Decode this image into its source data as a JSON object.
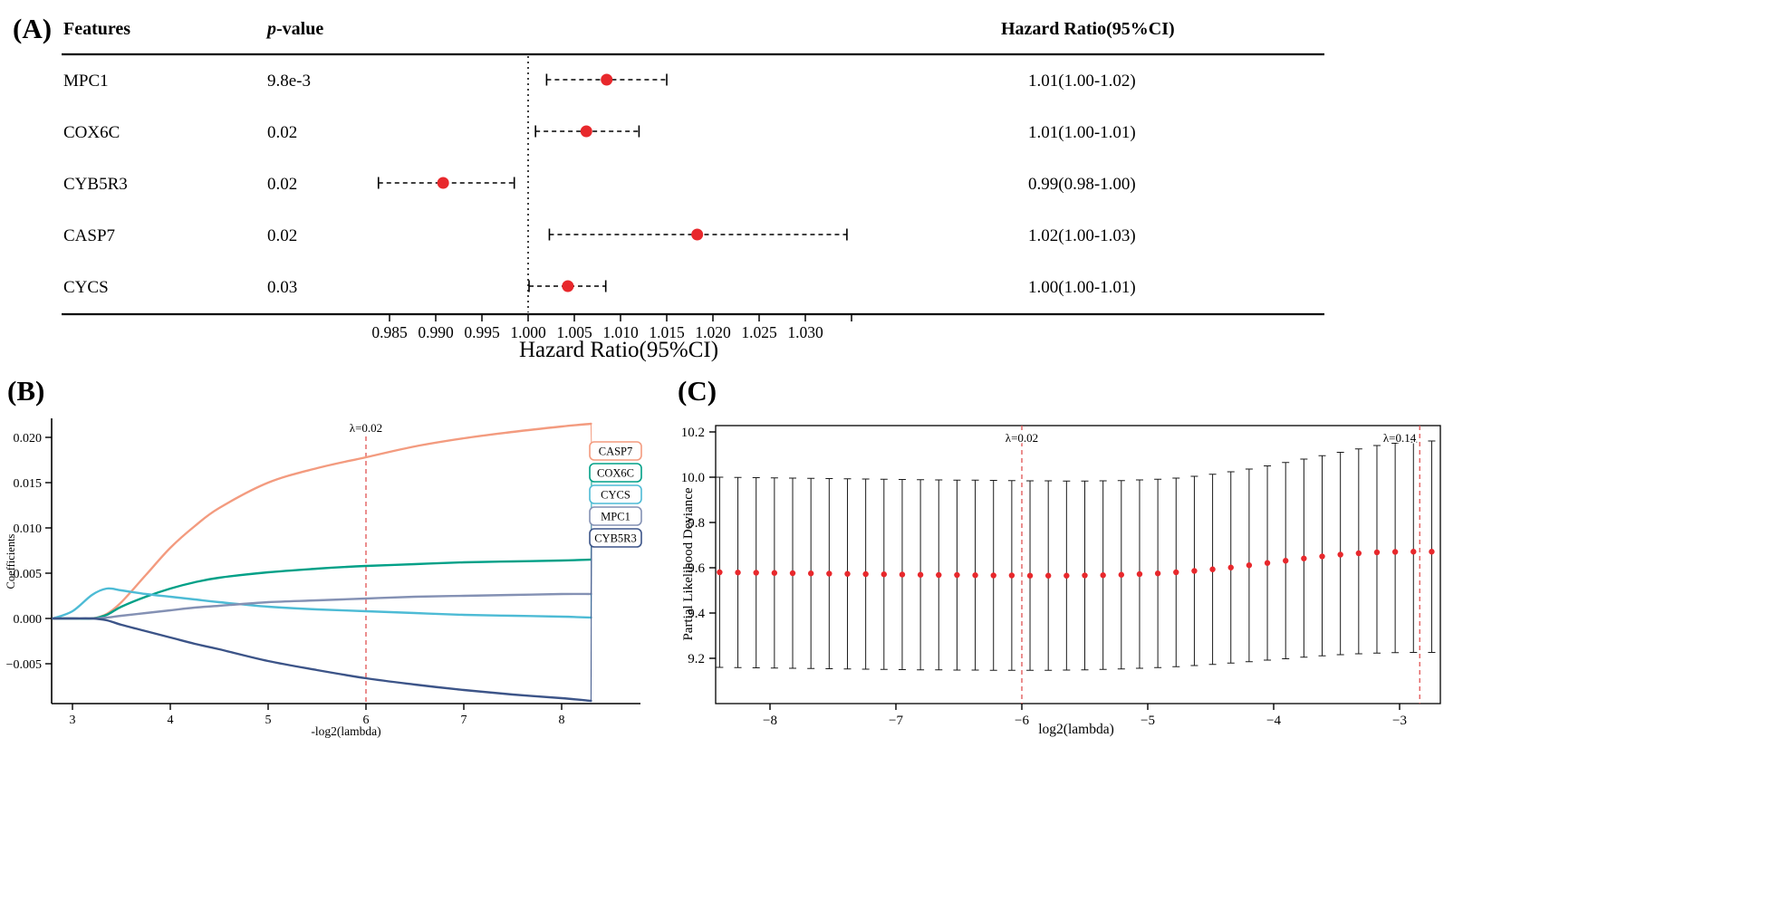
{
  "figure": {
    "panelA_label": "(A)",
    "panelB_label": "(B)",
    "panelC_label": "(C)",
    "background": "#ffffff"
  },
  "chart_data": [
    {
      "type": "scatter",
      "subtype": "forest-plot",
      "panel": "A",
      "columns": {
        "features": "Features",
        "pvalue_prefix": "p",
        "pvalue_suffix": "-value",
        "hazard_ratio": "Hazard Ratio(95%CI)"
      },
      "xlabel": "Hazard Ratio(95%CI)",
      "ref_line": 1.0,
      "xticks": [
        0.985,
        0.99,
        0.995,
        1.0,
        1.005,
        1.01,
        1.015,
        1.02,
        1.025,
        1.03
      ],
      "xticks_unlabeled": [
        1.035
      ],
      "xlim": [
        0.9825,
        1.038
      ],
      "dot_color": "#e8282c",
      "rows": [
        {
          "feature": "MPC1",
          "pvalue": "9.8e-3",
          "hr": 1.0085,
          "ci_low": 1.002,
          "ci_high": 1.015,
          "hr_text": "1.01(1.00-1.02)"
        },
        {
          "feature": "COX6C",
          "pvalue": "0.02",
          "hr": 1.0063,
          "ci_low": 1.0008,
          "ci_high": 1.012,
          "hr_text": "1.01(1.00-1.01)"
        },
        {
          "feature": "CYB5R3",
          "pvalue": "0.02",
          "hr": 0.9908,
          "ci_low": 0.9838,
          "ci_high": 0.9985,
          "hr_text": "0.99(0.98-1.00)"
        },
        {
          "feature": "CASP7",
          "pvalue": "0.02",
          "hr": 1.0183,
          "ci_low": 1.0023,
          "ci_high": 1.0345,
          "hr_text": "1.02(1.00-1.03)"
        },
        {
          "feature": "CYCS",
          "pvalue": "0.03",
          "hr": 1.0043,
          "ci_low": 1.0001,
          "ci_high": 1.0084,
          "hr_text": "1.00(1.00-1.01)"
        }
      ]
    },
    {
      "type": "line",
      "subtype": "lasso-coefficient-paths",
      "panel": "B",
      "xlabel": "-log2(lambda)",
      "ylabel": "Coefficients",
      "xticks": [
        3,
        4,
        5,
        6,
        7,
        8
      ],
      "yticks": [
        -0.005,
        0.0,
        0.005,
        0.01,
        0.015,
        0.02
      ],
      "xlim": [
        2.79,
        8.6
      ],
      "ylim": [
        -0.0094,
        0.022
      ],
      "lambda_line": {
        "x": 6,
        "label": "λ=0.02"
      },
      "lambda_color": "#e05252",
      "x": [
        2.8,
        3.0,
        3.2,
        3.35,
        3.5,
        3.75,
        4.0,
        4.25,
        4.5,
        5.0,
        5.5,
        6.0,
        6.5,
        7.0,
        7.5,
        8.0,
        8.3
      ],
      "series": [
        {
          "name": "CASP7",
          "color": "#F39B7F",
          "y": [
            0,
            0,
            0,
            0.0005,
            0.0018,
            0.0048,
            0.0078,
            0.0102,
            0.0122,
            0.015,
            0.0166,
            0.0178,
            0.019,
            0.0199,
            0.0206,
            0.0212,
            0.0215
          ]
        },
        {
          "name": "COX6C",
          "color": "#00A087",
          "y": [
            0,
            0,
            0,
            0.0004,
            0.0013,
            0.0024,
            0.0033,
            0.004,
            0.0045,
            0.0051,
            0.0055,
            0.0058,
            0.006,
            0.0062,
            0.0063,
            0.0064,
            0.0065
          ]
        },
        {
          "name": "CYCS",
          "color": "#4DBBD5",
          "y": [
            0,
            0.0008,
            0.0026,
            0.0033,
            0.0031,
            0.0027,
            0.0024,
            0.0021,
            0.0018,
            0.0013,
            0.001,
            0.0008,
            0.0006,
            0.0004,
            0.0003,
            0.0002,
            0.0001
          ]
        },
        {
          "name": "MPC1",
          "color": "#8491B4",
          "y": [
            0,
            0,
            0,
            0.0001,
            0.0003,
            0.0006,
            0.0009,
            0.0012,
            0.0014,
            0.0018,
            0.002,
            0.0022,
            0.0024,
            0.0025,
            0.0026,
            0.0027,
            0.0027
          ]
        },
        {
          "name": "CYB5R3",
          "color": "#3C5488",
          "y": [
            0,
            0,
            0,
            -0.0002,
            -0.0007,
            -0.0014,
            -0.0021,
            -0.0028,
            -0.0034,
            -0.0047,
            -0.0057,
            -0.0066,
            -0.0073,
            -0.0079,
            -0.0084,
            -0.0088,
            -0.0091
          ]
        }
      ],
      "legend": [
        "CASP7",
        "COX6C",
        "CYCS",
        "MPC1",
        "CYB5R3"
      ]
    },
    {
      "type": "scatter",
      "subtype": "cv-partial-likelihood-deviance",
      "panel": "C",
      "xlabel": "log2(lambda)",
      "ylabel": "Partial Likelihood Deviance",
      "xticks": [
        -8,
        -7,
        -6,
        -5,
        -4,
        -3
      ],
      "yticks": [
        9.2,
        9.4,
        9.6,
        9.8,
        10.0,
        10.2
      ],
      "xlim": [
        -8.43,
        -2.68
      ],
      "ylim": [
        9.0,
        10.23
      ],
      "dot_color": "#e8282c",
      "lambda_color": "#e05252",
      "lambda_lines": [
        {
          "x": -6.0,
          "label": "λ=0.02"
        },
        {
          "x": -2.84,
          "label": "λ=0.14"
        }
      ],
      "points_format": "[log2_lambda, deviance, ci_low, ci_high]",
      "points": [
        [
          -8.4,
          9.58,
          9.16,
          10.0
        ],
        [
          -8.255,
          9.579,
          9.159,
          9.999
        ],
        [
          -8.11,
          9.578,
          9.158,
          9.998
        ],
        [
          -7.965,
          9.577,
          9.157,
          9.997
        ],
        [
          -7.82,
          9.576,
          9.156,
          9.996
        ],
        [
          -7.675,
          9.575,
          9.155,
          9.995
        ],
        [
          -7.53,
          9.574,
          9.154,
          9.994
        ],
        [
          -7.385,
          9.573,
          9.153,
          9.993
        ],
        [
          -7.24,
          9.572,
          9.152,
          9.992
        ],
        [
          -7.095,
          9.571,
          9.151,
          9.991
        ],
        [
          -6.95,
          9.57,
          9.15,
          9.99
        ],
        [
          -6.805,
          9.569,
          9.149,
          9.989
        ],
        [
          -6.66,
          9.568,
          9.149,
          9.988
        ],
        [
          -6.515,
          9.568,
          9.148,
          9.987
        ],
        [
          -6.37,
          9.567,
          9.148,
          9.987
        ],
        [
          -6.225,
          9.566,
          9.147,
          9.986
        ],
        [
          -6.08,
          9.566,
          9.147,
          9.985
        ],
        [
          -5.935,
          9.565,
          9.147,
          9.984
        ],
        [
          -5.79,
          9.565,
          9.147,
          9.984
        ],
        [
          -5.645,
          9.565,
          9.148,
          9.983
        ],
        [
          -5.5,
          9.566,
          9.149,
          9.983
        ],
        [
          -5.355,
          9.567,
          9.151,
          9.984
        ],
        [
          -5.21,
          9.569,
          9.153,
          9.985
        ],
        [
          -5.065,
          9.572,
          9.156,
          9.988
        ],
        [
          -4.92,
          9.575,
          9.159,
          9.991
        ],
        [
          -4.775,
          9.58,
          9.163,
          9.996
        ],
        [
          -4.63,
          9.586,
          9.168,
          10.004
        ],
        [
          -4.485,
          9.593,
          9.173,
          10.013
        ],
        [
          -4.34,
          9.601,
          9.179,
          10.024
        ],
        [
          -4.195,
          9.611,
          9.185,
          10.036
        ],
        [
          -4.05,
          9.621,
          9.192,
          10.05
        ],
        [
          -3.905,
          9.631,
          9.198,
          10.065
        ],
        [
          -3.76,
          9.641,
          9.205,
          10.08
        ],
        [
          -3.615,
          9.65,
          9.211,
          10.095
        ],
        [
          -3.47,
          9.658,
          9.216,
          10.11
        ],
        [
          -3.325,
          9.664,
          9.22,
          10.125
        ],
        [
          -3.18,
          9.668,
          9.223,
          10.14
        ],
        [
          -3.035,
          9.67,
          9.225,
          10.15
        ],
        [
          -2.89,
          9.671,
          9.226,
          10.155
        ],
        [
          -2.745,
          9.671,
          9.226,
          10.16
        ]
      ]
    }
  ]
}
